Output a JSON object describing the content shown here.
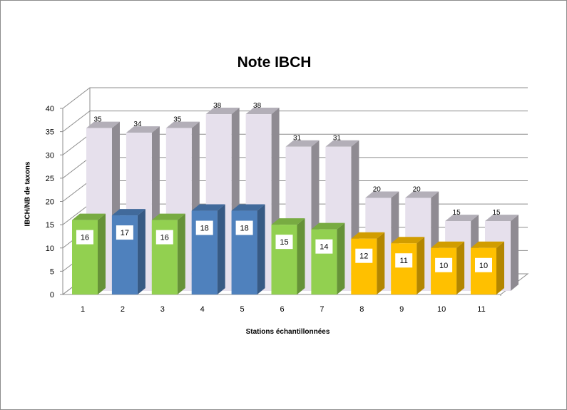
{
  "chart_data": {
    "type": "bar",
    "title": "Note IBCH",
    "xlabel": "Stations échantillonnées",
    "ylabel": "IBCH/NB de taxons",
    "ylim": [
      0,
      40
    ],
    "yticks": [
      "0",
      "5",
      "10",
      "15",
      "20",
      "25",
      "30",
      "35",
      "40"
    ],
    "categories": [
      "1",
      "2",
      "3",
      "4",
      "5",
      "6",
      "7",
      "8",
      "9",
      "10",
      "11"
    ],
    "grid": true,
    "legend": "none",
    "series": [
      {
        "values": [
          35,
          34,
          35,
          38,
          38,
          31,
          31,
          20,
          20,
          15,
          15
        ],
        "labels": [
          "35",
          "34",
          "35",
          "38",
          "38",
          "31",
          "31",
          "20",
          "20",
          "15",
          "15"
        ],
        "color": "#E6E0EC"
      },
      {
        "values": [
          16,
          17,
          16,
          18,
          18,
          15,
          14,
          12,
          11,
          10,
          10
        ],
        "labels": [
          "16",
          "17",
          "16",
          "18",
          "18",
          "15",
          "14",
          "12",
          "11",
          "10",
          "10"
        ],
        "colors": [
          "#92D050",
          "#4F81BD",
          "#92D050",
          "#4F81BD",
          "#4F81BD",
          "#92D050",
          "#92D050",
          "#FFC000",
          "#FFC000",
          "#FFC000",
          "#FFC000"
        ]
      }
    ]
  }
}
